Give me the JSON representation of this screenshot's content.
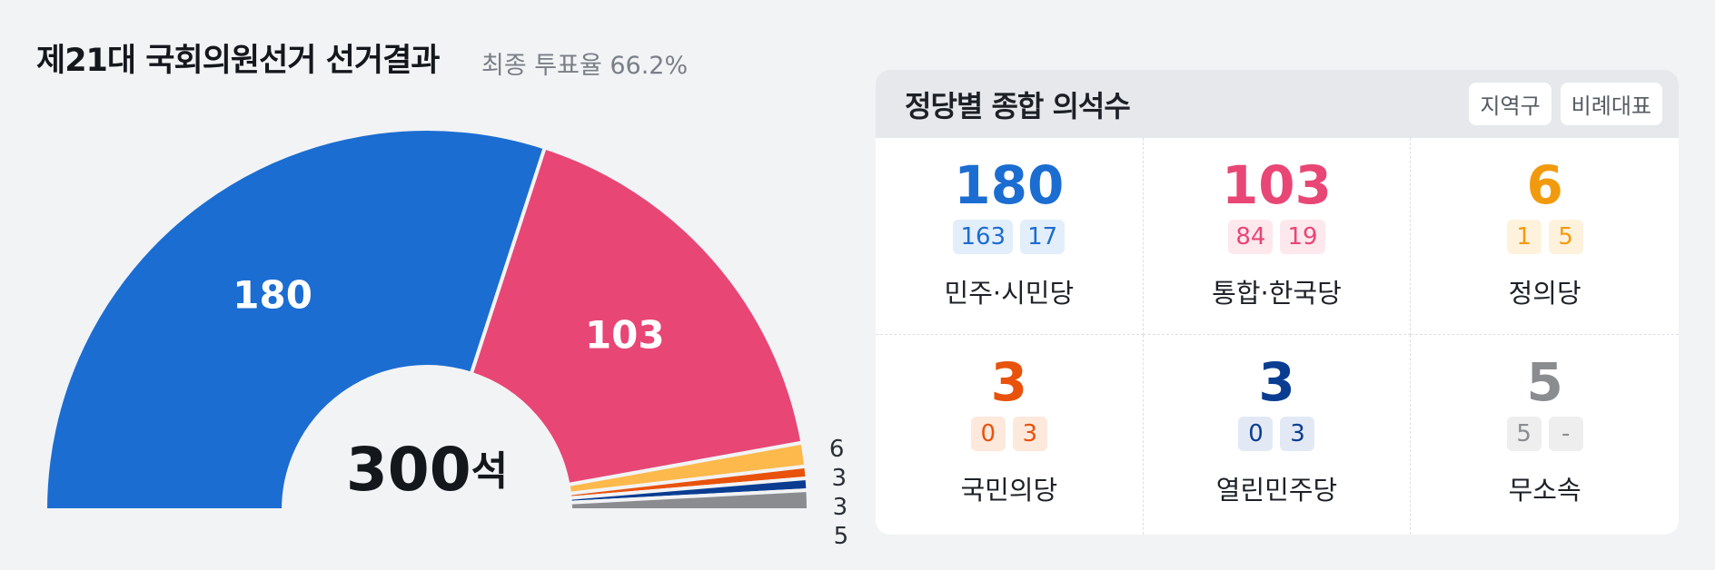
{
  "title": "제21대 국회의원선거 선거결과",
  "subtitle": "최종 투표율 66.2%",
  "chart_data": {
    "type": "half-donut",
    "categories": [
      "민주·시민당",
      "통합·한국당",
      "정의당",
      "국민의당",
      "열린민주당",
      "무소속"
    ],
    "values": [
      180,
      103,
      6,
      3,
      3,
      5
    ],
    "colors": [
      "#1b6dd1",
      "#e84675",
      "#fdb94b",
      "#e8520b",
      "#0a3d91",
      "#8b8c90"
    ],
    "total": 300,
    "total_unit": "석"
  },
  "panel": {
    "title": "정당별 종합 의석수",
    "tabs": [
      "지역구",
      "비례대표"
    ],
    "text_colors": [
      "#1b6dd1",
      "#e84675",
      "#f29a0e",
      "#e8520b",
      "#0a3d91",
      "#8b8c90"
    ],
    "badge_colors": [
      "#e3eefb",
      "#fde8ee",
      "#fff2dc",
      "#fde8dc",
      "#e2e9f5",
      "#eeeeef"
    ],
    "district": [
      "163",
      "84",
      "1",
      "0",
      "0",
      "5"
    ],
    "proportional": [
      "17",
      "19",
      "5",
      "3",
      "3",
      "-"
    ]
  }
}
